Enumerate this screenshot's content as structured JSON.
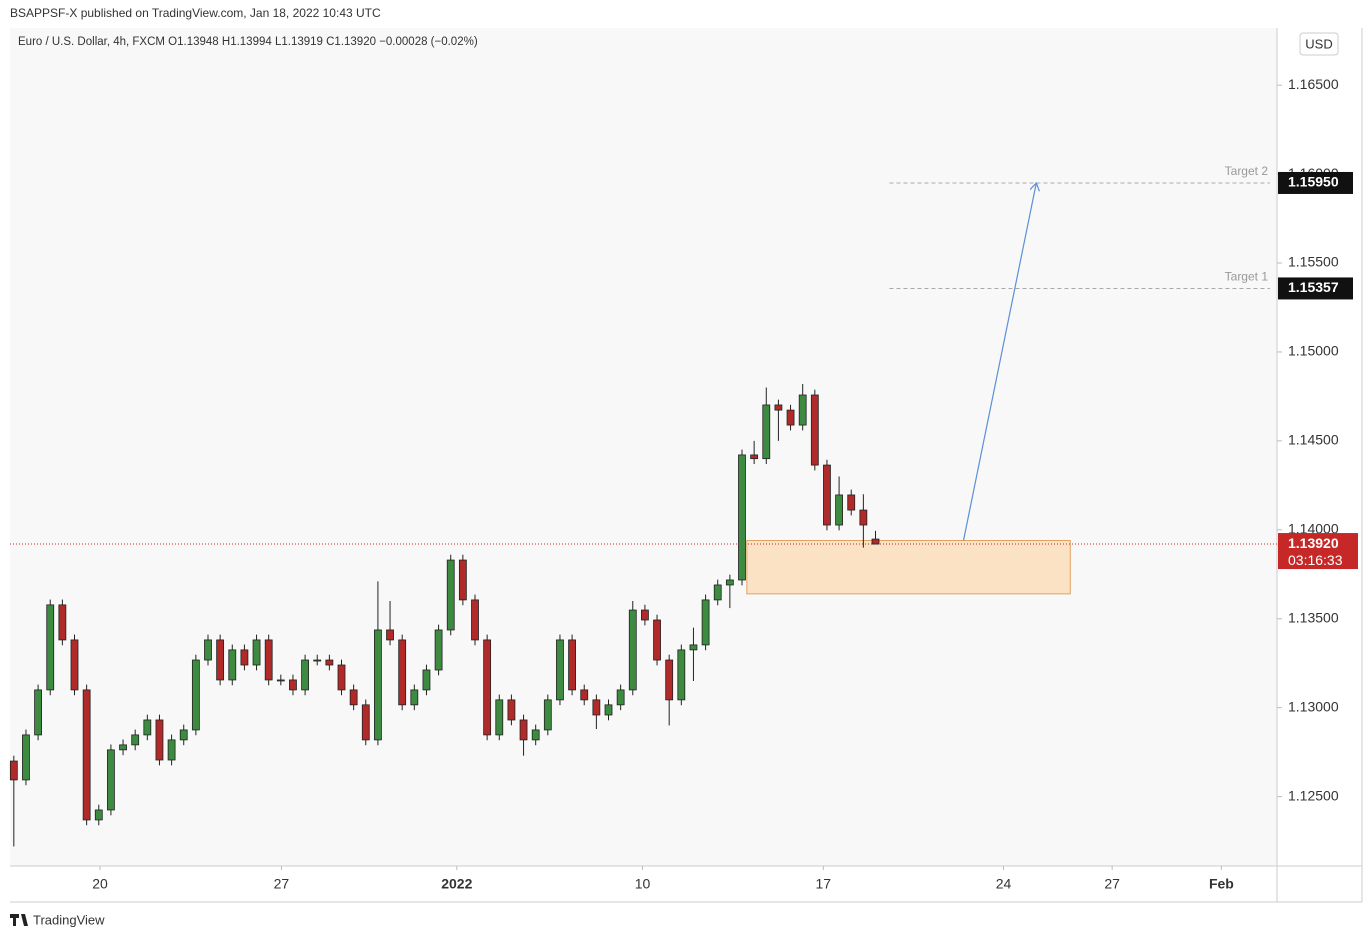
{
  "page": {
    "publisher": "BSAPPSF-X published on TradingView.com, Jan 18, 2022 10:43 UTC",
    "currency": "USD",
    "brand": "TradingView"
  },
  "chart_data": {
    "type": "candlestick",
    "legend_text": "Euro / U.S. Dollar, 4h, FXCM  O1.13948  H1.13994  L1.13919  C1.13920  −0.00028 (−0.02%)",
    "up_color": "#3d8b40",
    "down_color": "#b02a2a",
    "x": [
      0,
      2,
      4,
      6,
      8,
      10,
      12,
      14,
      16,
      18,
      20,
      22,
      24,
      26,
      28,
      30,
      32,
      34,
      36,
      38,
      40,
      42,
      44,
      46,
      48,
      50,
      52,
      54,
      56,
      58,
      60,
      62,
      64,
      66,
      68,
      70,
      72,
      74,
      76,
      78,
      80,
      82,
      84,
      86,
      88,
      90,
      92,
      94,
      96,
      98,
      100,
      102,
      104,
      106,
      108,
      110,
      112,
      114,
      116,
      118,
      120,
      122,
      124,
      126,
      128,
      130,
      132,
      134,
      136,
      138,
      140,
      142
    ],
    "candles": [
      [
        1.127,
        1.1273,
        1.1222,
        1.12594
      ],
      [
        1.12594,
        1.12877,
        1.12564,
        1.12847
      ],
      [
        1.12847,
        1.1313,
        1.12817,
        1.131
      ],
      [
        1.131,
        1.13608,
        1.1307,
        1.13578
      ],
      [
        1.13578,
        1.13608,
        1.13351,
        1.13381
      ],
      [
        1.13381,
        1.13411,
        1.1307,
        1.131
      ],
      [
        1.131,
        1.1313,
        1.12339,
        1.12369
      ],
      [
        1.12369,
        1.12455,
        1.12339,
        1.12425
      ],
      [
        1.12425,
        1.12793,
        1.12395,
        1.12763
      ],
      [
        1.12763,
        1.12821,
        1.12733,
        1.12791
      ],
      [
        1.12791,
        1.12877,
        1.12761,
        1.12847
      ],
      [
        1.12847,
        1.12961,
        1.12817,
        1.12931
      ],
      [
        1.12931,
        1.12961,
        1.12676,
        1.12706
      ],
      [
        1.12706,
        1.12849,
        1.12676,
        1.12819
      ],
      [
        1.12819,
        1.12905,
        1.12789,
        1.12875
      ],
      [
        1.12875,
        1.13298,
        1.12845,
        1.13268
      ],
      [
        1.13268,
        1.13411,
        1.13238,
        1.13381
      ],
      [
        1.13381,
        1.13411,
        1.13126,
        1.13156
      ],
      [
        1.13156,
        1.13355,
        1.13126,
        1.13325
      ],
      [
        1.13325,
        1.13355,
        1.1321,
        1.1324
      ],
      [
        1.1324,
        1.13411,
        1.1321,
        1.13381
      ],
      [
        1.13381,
        1.13411,
        1.13126,
        1.13156
      ],
      [
        1.13156,
        1.13186,
        1.13126,
        1.13156
      ],
      [
        1.13156,
        1.13186,
        1.1307,
        1.131
      ],
      [
        1.131,
        1.13298,
        1.1307,
        1.13268
      ],
      [
        1.13268,
        1.13298,
        1.13238,
        1.13268
      ],
      [
        1.13268,
        1.13298,
        1.1321,
        1.1324
      ],
      [
        1.1324,
        1.1327,
        1.1307,
        1.131
      ],
      [
        1.131,
        1.1313,
        1.12986,
        1.13016
      ],
      [
        1.13016,
        1.13046,
        1.12789,
        1.12819
      ],
      [
        1.12819,
        1.1371,
        1.12789,
        1.13437
      ],
      [
        1.13437,
        1.136,
        1.13351,
        1.13381
      ],
      [
        1.13381,
        1.13411,
        1.12986,
        1.13016
      ],
      [
        1.13016,
        1.1313,
        1.12986,
        1.131
      ],
      [
        1.131,
        1.13242,
        1.1307,
        1.13212
      ],
      [
        1.13212,
        1.13467,
        1.13182,
        1.13437
      ],
      [
        1.13437,
        1.1386,
        1.13407,
        1.1383
      ],
      [
        1.1383,
        1.1386,
        1.13576,
        1.13606
      ],
      [
        1.13606,
        1.13636,
        1.13351,
        1.13381
      ],
      [
        1.13381,
        1.13411,
        1.12817,
        1.12847
      ],
      [
        1.12847,
        1.13074,
        1.12817,
        1.13044
      ],
      [
        1.13044,
        1.13074,
        1.12901,
        1.12931
      ],
      [
        1.12931,
        1.12961,
        1.1273,
        1.12819
      ],
      [
        1.12819,
        1.12905,
        1.12789,
        1.12875
      ],
      [
        1.12875,
        1.13074,
        1.12845,
        1.13044
      ],
      [
        1.13044,
        1.13411,
        1.13014,
        1.13381
      ],
      [
        1.13381,
        1.13411,
        1.1307,
        1.131
      ],
      [
        1.131,
        1.1313,
        1.13014,
        1.13044
      ],
      [
        1.13044,
        1.13074,
        1.1288,
        1.12959
      ],
      [
        1.12959,
        1.13046,
        1.12929,
        1.13016
      ],
      [
        1.13016,
        1.1313,
        1.12986,
        1.131
      ],
      [
        1.131,
        1.136,
        1.1307,
        1.13549
      ],
      [
        1.13549,
        1.13579,
        1.13463,
        1.13493
      ],
      [
        1.13493,
        1.13523,
        1.13238,
        1.13268
      ],
      [
        1.13268,
        1.13298,
        1.129,
        1.13044
      ],
      [
        1.13044,
        1.13355,
        1.13014,
        1.13325
      ],
      [
        1.13325,
        1.1345,
        1.1315,
        1.13353
      ],
      [
        1.13353,
        1.13636,
        1.13323,
        1.13606
      ],
      [
        1.13606,
        1.1372,
        1.13576,
        1.1369
      ],
      [
        1.1369,
        1.13748,
        1.1356,
        1.13718
      ],
      [
        1.13718,
        1.14451,
        1.13688,
        1.14421
      ],
      [
        1.14421,
        1.145,
        1.1437,
        1.144
      ],
      [
        1.144,
        1.148,
        1.1437,
        1.14702
      ],
      [
        1.14702,
        1.14732,
        1.145,
        1.14673
      ],
      [
        1.14673,
        1.14703,
        1.14559,
        1.14589
      ],
      [
        1.14589,
        1.1482,
        1.14559,
        1.14758
      ],
      [
        1.14758,
        1.14788,
        1.14334,
        1.14364
      ],
      [
        1.14364,
        1.14394,
        1.13997,
        1.14027
      ],
      [
        1.14027,
        1.143,
        1.13997,
        1.14196
      ],
      [
        1.14196,
        1.14226,
        1.14081,
        1.14111
      ],
      [
        1.14111,
        1.142,
        1.139,
        1.14027
      ],
      [
        1.13948,
        1.13994,
        1.13919,
        1.1392
      ]
    ],
    "xlim": [
      -0.3,
      208
    ],
    "ylim": [
      1.1211,
      1.1681
    ],
    "xticks": [
      {
        "value": 14.2,
        "label": "20"
      },
      {
        "value": 44.1,
        "label": "27"
      },
      {
        "value": 73,
        "label": "2022"
      },
      {
        "value": 103.6,
        "label": "10"
      },
      {
        "value": 133.4,
        "label": "17"
      },
      {
        "value": 163.1,
        "label": "24"
      },
      {
        "value": 181,
        "label": "27"
      },
      {
        "value": 199,
        "label": "Feb"
      }
    ],
    "yticks": [
      {
        "value": 1.125,
        "label": "1.12500"
      },
      {
        "value": 1.13,
        "label": "1.13000"
      },
      {
        "value": 1.135,
        "label": "1.13500"
      },
      {
        "value": 1.14,
        "label": "1.14000"
      },
      {
        "value": 1.145,
        "label": "1.14500"
      },
      {
        "value": 1.15,
        "label": "1.15000"
      },
      {
        "value": 1.155,
        "label": "1.15500"
      },
      {
        "value": 1.16,
        "label": "1.16000"
      },
      {
        "value": 1.165,
        "label": "1.16500"
      }
    ],
    "last_price": {
      "value": 1.1392,
      "label": "1.13920",
      "countdown": "03:16:33",
      "color": "#c62828"
    },
    "zone": {
      "x": [
        120.8,
        174.1
      ],
      "y": [
        1.1364,
        1.1394
      ],
      "color": "#fbe2c4"
    },
    "levels": [
      {
        "name": "Target 2",
        "value": 1.1595,
        "label": "1.15950",
        "x": [
          144.3,
          207
        ]
      },
      {
        "name": "Target 1",
        "value": 1.15357,
        "label": "1.15357",
        "x": [
          144.3,
          207
        ]
      }
    ],
    "arrow": {
      "x": [
        156.5,
        168.5
      ],
      "y": [
        1.1394,
        1.1595
      ],
      "color": "#5b8fd9"
    }
  }
}
